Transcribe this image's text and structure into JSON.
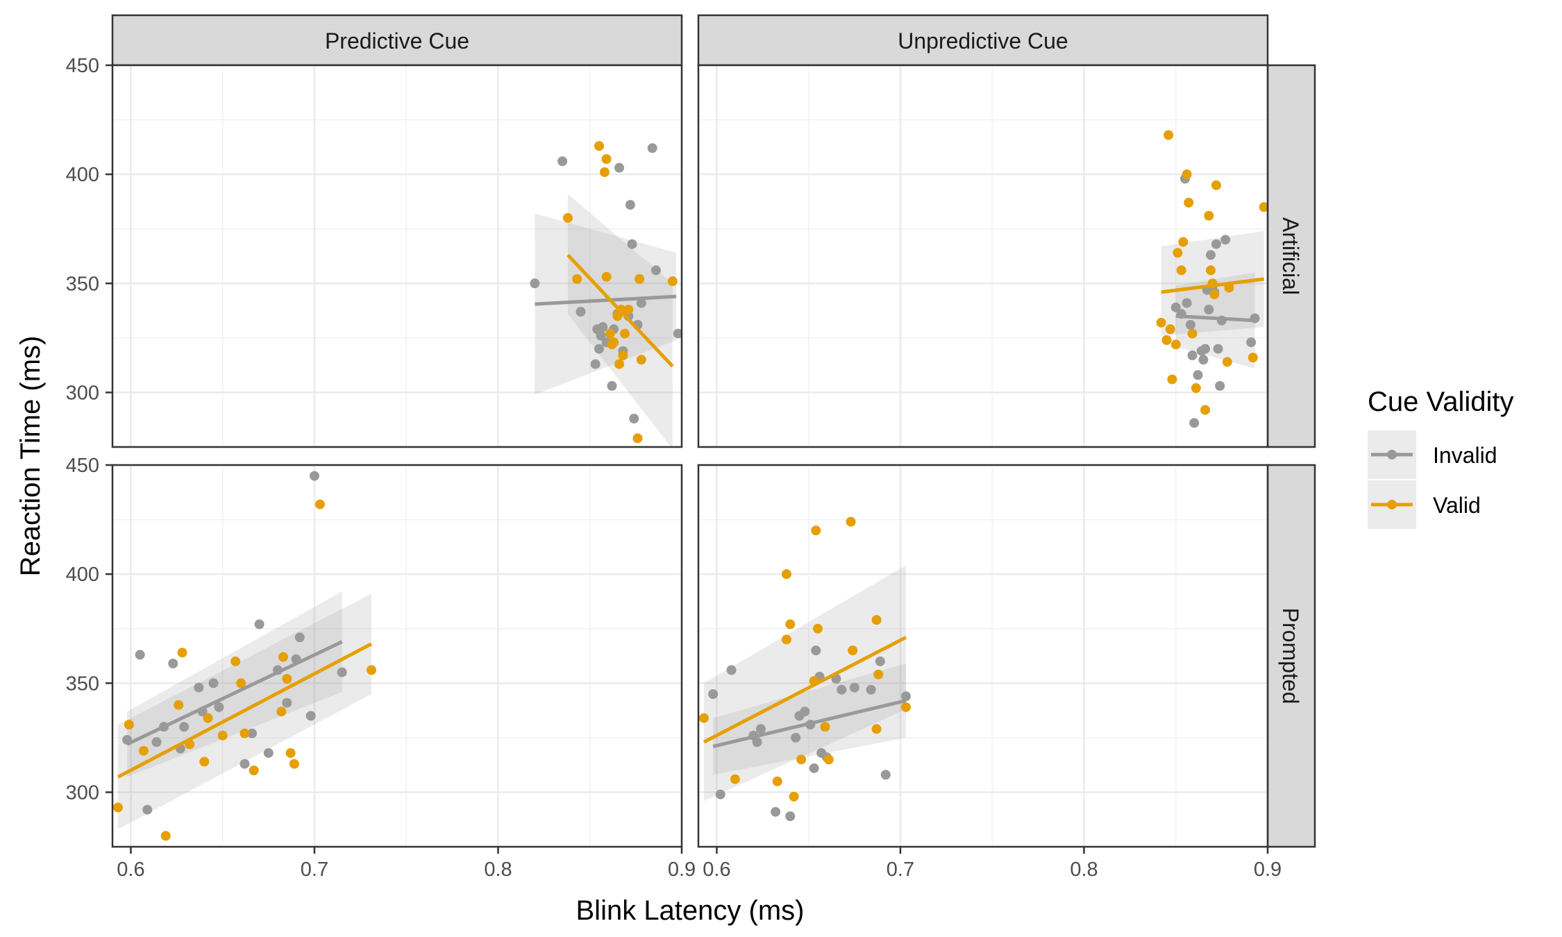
{
  "chart_data": {
    "type": "scatter",
    "xlabel": "Blink Latency (ms)",
    "ylabel": "Reaction Time (ms)",
    "xlim": [
      0.59,
      0.9
    ],
    "ylim": [
      275,
      450
    ],
    "x_ticks": [
      0.6,
      0.7,
      0.8,
      0.9
    ],
    "x_tick_labels": [
      "0.6",
      "0.7",
      "0.8",
      "0.9"
    ],
    "y_ticks": [
      300,
      350,
      400,
      450
    ],
    "y_tick_labels": [
      "300",
      "350",
      "400",
      "450"
    ],
    "grid": true,
    "legend": {
      "title": "Cue Validity",
      "position": "right",
      "entries": [
        {
          "label": "Invalid",
          "color": "#999999"
        },
        {
          "label": "Valid",
          "color": "#E69F00"
        }
      ]
    },
    "column_facets": [
      "Predictive Cue",
      "Unpredictive Cue"
    ],
    "row_facets": [
      "Artificial",
      "Prompted"
    ],
    "panels": [
      {
        "column": "Predictive Cue",
        "row": "Artificial",
        "series": [
          {
            "name": "Invalid",
            "points": [
              [
                0.82,
                350
              ],
              [
                0.835,
                406
              ],
              [
                0.845,
                337
              ],
              [
                0.853,
                313
              ],
              [
                0.855,
                320
              ],
              [
                0.854,
                329
              ],
              [
                0.857,
                330
              ],
              [
                0.859,
                323
              ],
              [
                0.862,
                303
              ],
              [
                0.865,
                336
              ],
              [
                0.866,
                403
              ],
              [
                0.868,
                319
              ],
              [
                0.871,
                335
              ],
              [
                0.872,
                386
              ],
              [
                0.873,
                368
              ],
              [
                0.874,
                288
              ],
              [
                0.876,
                331
              ],
              [
                0.878,
                341
              ],
              [
                0.884,
                412
              ],
              [
                0.886,
                356
              ],
              [
                0.898,
                327
              ],
              [
                0.863,
                329
              ],
              [
                0.856,
                326
              ]
            ],
            "fit": {
              "x": [
                0.82,
                0.897
              ],
              "y": [
                340.5,
                344.0
              ],
              "ci_lo": [
                299,
                324
              ],
              "ci_hi": [
                382,
                364
              ]
            }
          },
          {
            "name": "Valid",
            "points": [
              [
                0.838,
                380
              ],
              [
                0.843,
                352
              ],
              [
                0.855,
                413
              ],
              [
                0.858,
                401
              ],
              [
                0.859,
                407
              ],
              [
                0.859,
                353
              ],
              [
                0.861,
                327
              ],
              [
                0.863,
                323
              ],
              [
                0.865,
                335
              ],
              [
                0.866,
                313
              ],
              [
                0.867,
                338
              ],
              [
                0.868,
                317
              ],
              [
                0.869,
                327
              ],
              [
                0.871,
                338
              ],
              [
                0.876,
                279
              ],
              [
                0.877,
                352
              ],
              [
                0.878,
                315
              ],
              [
                0.895,
                351
              ],
              [
                0.862,
                322
              ]
            ],
            "fit": {
              "x": [
                0.838,
                0.895
              ],
              "y": [
                363.0,
                312.0
              ],
              "ci_lo": [
                336,
                274
              ],
              "ci_hi": [
                391,
                350
              ]
            }
          }
        ]
      },
      {
        "column": "Unpredictive Cue",
        "row": "Artificial",
        "series": [
          {
            "name": "Invalid",
            "points": [
              [
                0.85,
                339
              ],
              [
                0.853,
                336
              ],
              [
                0.855,
                398
              ],
              [
                0.856,
                341
              ],
              [
                0.858,
                331
              ],
              [
                0.859,
                317
              ],
              [
                0.86,
                286
              ],
              [
                0.862,
                308
              ],
              [
                0.864,
                319
              ],
              [
                0.865,
                315
              ],
              [
                0.866,
                320
              ],
              [
                0.867,
                347
              ],
              [
                0.868,
                338
              ],
              [
                0.869,
                363
              ],
              [
                0.87,
                349
              ],
              [
                0.871,
                346
              ],
              [
                0.872,
                368
              ],
              [
                0.873,
                320
              ],
              [
                0.874,
                303
              ],
              [
                0.875,
                333
              ],
              [
                0.877,
                370
              ],
              [
                0.891,
                323
              ],
              [
                0.893,
                334
              ]
            ],
            "fit": {
              "x": [
                0.85,
                0.893
              ],
              "y": [
                335.0,
                333.0
              ],
              "ci_lo": [
                321,
                311
              ],
              "ci_hi": [
                349,
                355
              ]
            }
          },
          {
            "name": "Valid",
            "points": [
              [
                0.842,
                332
              ],
              [
                0.845,
                324
              ],
              [
                0.847,
                329
              ],
              [
                0.846,
                418
              ],
              [
                0.848,
                306
              ],
              [
                0.85,
                322
              ],
              [
                0.851,
                364
              ],
              [
                0.853,
                356
              ],
              [
                0.854,
                369
              ],
              [
                0.856,
                400
              ],
              [
                0.857,
                387
              ],
              [
                0.859,
                327
              ],
              [
                0.861,
                302
              ],
              [
                0.866,
                292
              ],
              [
                0.868,
                381
              ],
              [
                0.869,
                356
              ],
              [
                0.87,
                350
              ],
              [
                0.872,
                395
              ],
              [
                0.878,
                314
              ],
              [
                0.879,
                348
              ],
              [
                0.892,
                316
              ],
              [
                0.898,
                385
              ],
              [
                0.871,
                345
              ]
            ],
            "fit": {
              "x": [
                0.842,
                0.898
              ],
              "y": [
                346.0,
                352.0
              ],
              "ci_lo": [
                326,
                330
              ],
              "ci_hi": [
                367,
                374
              ]
            }
          }
        ]
      },
      {
        "column": "Predictive Cue",
        "row": "Prompted",
        "series": [
          {
            "name": "Invalid",
            "points": [
              [
                0.598,
                324
              ],
              [
                0.605,
                363
              ],
              [
                0.609,
                292
              ],
              [
                0.614,
                323
              ],
              [
                0.618,
                330
              ],
              [
                0.623,
                359
              ],
              [
                0.627,
                320
              ],
              [
                0.629,
                330
              ],
              [
                0.637,
                348
              ],
              [
                0.639,
                337
              ],
              [
                0.645,
                350
              ],
              [
                0.648,
                339
              ],
              [
                0.662,
                313
              ],
              [
                0.666,
                327
              ],
              [
                0.67,
                377
              ],
              [
                0.675,
                318
              ],
              [
                0.68,
                356
              ],
              [
                0.685,
                341
              ],
              [
                0.69,
                361
              ],
              [
                0.692,
                371
              ],
              [
                0.698,
                335
              ],
              [
                0.7,
                445
              ],
              [
                0.715,
                355
              ]
            ],
            "fit": {
              "x": [
                0.598,
                0.715
              ],
              "y": [
                322.0,
                369.0
              ],
              "ci_lo": [
                307,
                346
              ],
              "ci_hi": [
                337,
                392
              ]
            }
          },
          {
            "name": "Valid",
            "points": [
              [
                0.593,
                293
              ],
              [
                0.599,
                331
              ],
              [
                0.607,
                319
              ],
              [
                0.619,
                280
              ],
              [
                0.626,
                340
              ],
              [
                0.628,
                364
              ],
              [
                0.632,
                322
              ],
              [
                0.64,
                314
              ],
              [
                0.642,
                334
              ],
              [
                0.65,
                326
              ],
              [
                0.657,
                360
              ],
              [
                0.66,
                350
              ],
              [
                0.662,
                327
              ],
              [
                0.667,
                310
              ],
              [
                0.682,
                337
              ],
              [
                0.683,
                362
              ],
              [
                0.685,
                352
              ],
              [
                0.687,
                318
              ],
              [
                0.689,
                313
              ],
              [
                0.703,
                432
              ],
              [
                0.731,
                356
              ]
            ],
            "fit": {
              "x": [
                0.593,
                0.731
              ],
              "y": [
                307.0,
                368.0
              ],
              "ci_lo": [
                283,
                345
              ],
              "ci_hi": [
                331,
                391
              ]
            }
          }
        ]
      },
      {
        "column": "Unpredictive Cue",
        "row": "Prompted",
        "series": [
          {
            "name": "Invalid",
            "points": [
              [
                0.598,
                345
              ],
              [
                0.602,
                299
              ],
              [
                0.608,
                356
              ],
              [
                0.62,
                326
              ],
              [
                0.622,
                323
              ],
              [
                0.624,
                329
              ],
              [
                0.632,
                291
              ],
              [
                0.64,
                289
              ],
              [
                0.643,
                325
              ],
              [
                0.645,
                335
              ],
              [
                0.648,
                337
              ],
              [
                0.651,
                331
              ],
              [
                0.653,
                311
              ],
              [
                0.654,
                365
              ],
              [
                0.656,
                353
              ],
              [
                0.657,
                318
              ],
              [
                0.66,
                316
              ],
              [
                0.665,
                352
              ],
              [
                0.668,
                347
              ],
              [
                0.675,
                348
              ],
              [
                0.684,
                347
              ],
              [
                0.689,
                360
              ],
              [
                0.692,
                308
              ],
              [
                0.703,
                344
              ]
            ],
            "fit": {
              "x": [
                0.598,
                0.703
              ],
              "y": [
                321.0,
                342.0
              ],
              "ci_lo": [
                308,
                325
              ],
              "ci_hi": [
                334,
                359
              ]
            }
          },
          {
            "name": "Valid",
            "points": [
              [
                0.593,
                334
              ],
              [
                0.61,
                306
              ],
              [
                0.633,
                305
              ],
              [
                0.638,
                400
              ],
              [
                0.64,
                377
              ],
              [
                0.642,
                298
              ],
              [
                0.646,
                315
              ],
              [
                0.654,
                420
              ],
              [
                0.655,
                375
              ],
              [
                0.659,
                330
              ],
              [
                0.661,
                315
              ],
              [
                0.673,
                424
              ],
              [
                0.674,
                365
              ],
              [
                0.687,
                379
              ],
              [
                0.688,
                354
              ],
              [
                0.687,
                329
              ],
              [
                0.703,
                339
              ],
              [
                0.653,
                351
              ],
              [
                0.638,
                370
              ]
            ],
            "fit": {
              "x": [
                0.593,
                0.703
              ],
              "y": [
                323.0,
                371.0
              ],
              "ci_lo": [
                296,
                338
              ],
              "ci_hi": [
                350,
                404
              ]
            }
          }
        ]
      }
    ]
  }
}
